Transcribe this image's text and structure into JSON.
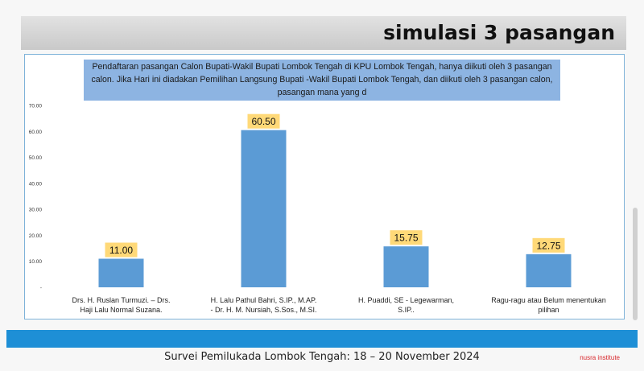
{
  "title": "simulasi 3 pasangan",
  "question": "Pendaftaran pasangan Calon Bupati-Wakil Bupati Lombok Tengah di KPU Lombok Tengah,  hanya diikuti oleh 3 pasangan calon. Jika Hari ini diadakan Pemilihan Langsung Bupati -Wakil Bupati Lombok Tengah, dan diikuti oleh 3  pasangan calon, pasangan mana yang d",
  "footer": "Survei Pemilukada Lombok Tengah: 18 – 20 November 2024",
  "brand": "nusra institute",
  "colors": {
    "bar": "#5b9bd5",
    "label_bg": "#ffd978",
    "band": "#1e8fd6"
  },
  "chart_data": {
    "type": "bar",
    "categories": [
      "Drs. H. Ruslan Turmuzi. – Drs. Haji Lalu Normal Suzana.",
      "H. Lalu Pathul Bahri, S.IP., M.AP.  - Dr. H. M. Nursiah, S.Sos., M.SI.",
      "H. Puaddi, SE  -  Legewarman, S.IP..",
      "Ragu-ragu atau Belum menentukan pilihan"
    ],
    "values": [
      11.0,
      60.5,
      15.75,
      12.75
    ],
    "value_labels": [
      "11.00",
      "60.50",
      "15.75",
      "12.75"
    ],
    "ylim": [
      0,
      70
    ],
    "yticks": [
      "-",
      "10.00",
      "20.00",
      "30.00",
      "40.00",
      "50.00",
      "60.00",
      "70.00"
    ],
    "ylabel": "",
    "xlabel": "",
    "grid": false
  }
}
